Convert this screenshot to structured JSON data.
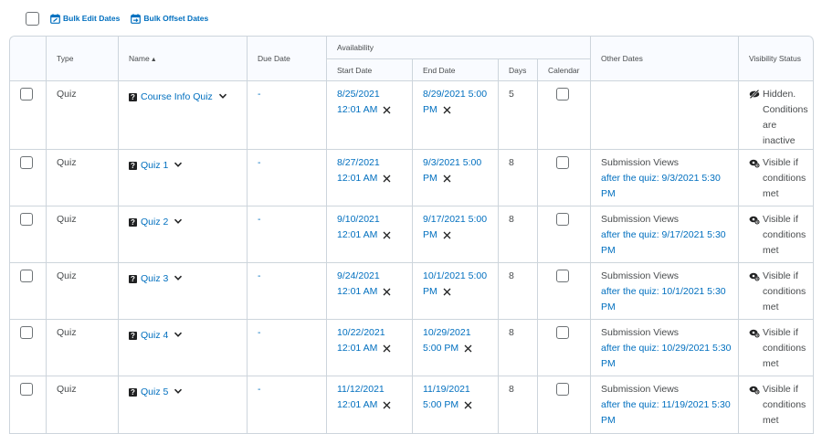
{
  "toolbar": {
    "bulk_edit_label": "Bulk Edit Dates",
    "bulk_offset_label": "Bulk Offset Dates"
  },
  "table": {
    "headers": {
      "type": "Type",
      "name": "Name",
      "due_date": "Due Date",
      "availability": "Availability",
      "start_date": "Start Date",
      "end_date": "End Date",
      "days": "Days",
      "calendar": "Calendar",
      "other_dates": "Other Dates",
      "visibility": "Visibility Status"
    },
    "rows": [
      {
        "type": "Quiz",
        "name": "Course Info Quiz",
        "due": "-",
        "start_line1": "8/25/2021",
        "start_line2": "12:01 AM",
        "end_line1": "8/29/2021 5:00",
        "end_line2": "PM",
        "days": "5",
        "other_label": "",
        "other_link1": "",
        "other_link2": "",
        "vis_text": "Hidden. Conditions are inactive",
        "vis_icon": "eye-slash-icon"
      },
      {
        "type": "Quiz",
        "name": "Quiz 1",
        "due": "-",
        "start_line1": "8/27/2021",
        "start_line2": "12:01 AM",
        "end_line1": "9/3/2021 5:00",
        "end_line2": "PM",
        "days": "8",
        "other_label": "Submission Views",
        "other_link1": "after the quiz: 9/3/2021 5:30",
        "other_link2": "PM",
        "vis_text": "Visible if conditions met",
        "vis_icon": "conditional-visibility-icon"
      },
      {
        "type": "Quiz",
        "name": "Quiz 2",
        "due": "-",
        "start_line1": "9/10/2021",
        "start_line2": "12:01 AM",
        "end_line1": "9/17/2021 5:00",
        "end_line2": "PM",
        "days": "8",
        "other_label": "Submission Views",
        "other_link1": "after the quiz: 9/17/2021 5:30",
        "other_link2": "PM",
        "vis_text": "Visible if conditions met",
        "vis_icon": "conditional-visibility-icon"
      },
      {
        "type": "Quiz",
        "name": "Quiz 3",
        "due": "-",
        "start_line1": "9/24/2021",
        "start_line2": "12:01 AM",
        "end_line1": "10/1/2021 5:00",
        "end_line2": "PM",
        "days": "8",
        "other_label": "Submission Views",
        "other_link1": "after the quiz: 10/1/2021 5:30",
        "other_link2": "PM",
        "vis_text": "Visible if conditions met",
        "vis_icon": "conditional-visibility-icon"
      },
      {
        "type": "Quiz",
        "name": "Quiz 4",
        "due": "-",
        "start_line1": "10/22/2021",
        "start_line2": "12:01 AM",
        "end_line1": "10/29/2021",
        "end_line2": "5:00 PM",
        "days": "8",
        "other_label": "Submission Views",
        "other_link1": "after the quiz: 10/29/2021 5:30",
        "other_link2": "PM",
        "vis_text": "Visible if conditions met",
        "vis_icon": "conditional-visibility-icon"
      },
      {
        "type": "Quiz",
        "name": "Quiz 5",
        "due": "-",
        "start_line1": "11/12/2021",
        "start_line2": "12:01 AM",
        "end_line1": "11/19/2021",
        "end_line2": "5:00 PM",
        "days": "8",
        "other_label": "Submission Views",
        "other_link1": "after the quiz: 11/19/2021 5:30",
        "other_link2": "PM",
        "vis_text": "Visible if conditions met",
        "vis_icon": "conditional-visibility-icon"
      }
    ]
  }
}
